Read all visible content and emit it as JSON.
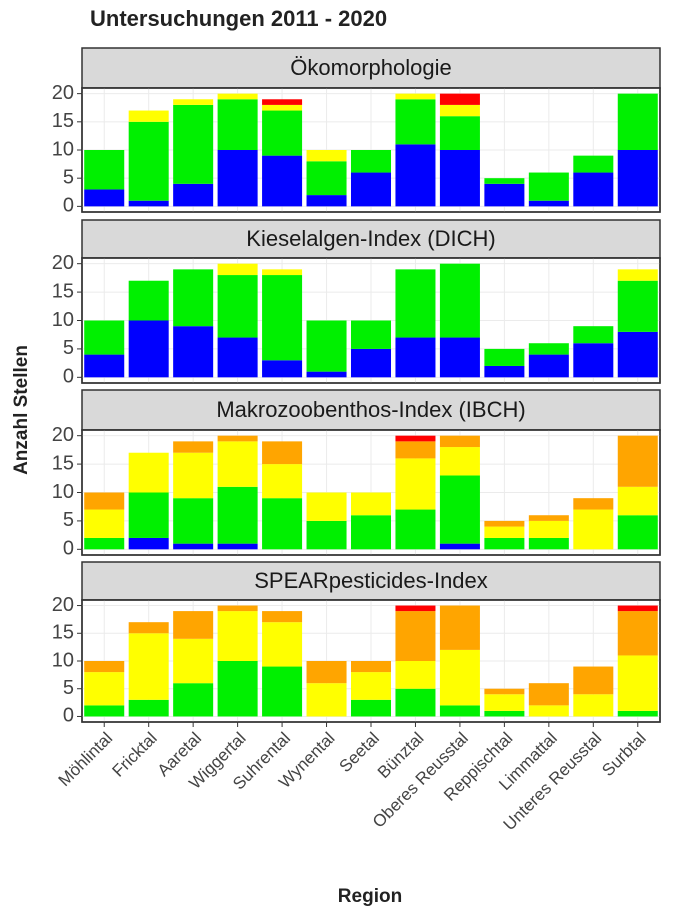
{
  "title": "Untersuchungen 2011 - 2020",
  "x_label": "Region",
  "y_label": "Anzahl Stellen",
  "categories": [
    "Möhlintal",
    "Fricktal",
    "Aaretal",
    "Wiggertal",
    "Suhrental",
    "Wynental",
    "Seetal",
    "Bünztal",
    "Oberes Reusstal",
    "Reppischtal",
    "Limmattal",
    "Unteres Reusstal",
    "Surbtal"
  ],
  "chart_data": [
    {
      "type": "bar",
      "stacked": true,
      "title": "Ökomorphologie",
      "ylim": [
        -1,
        21
      ],
      "yticks": [
        0,
        5,
        10,
        15,
        20
      ],
      "grid": true,
      "series": [
        {
          "color": "#0000ff",
          "values": [
            3,
            1,
            4,
            10,
            9,
            2,
            6,
            11,
            10,
            4,
            1,
            6,
            10
          ]
        },
        {
          "color": "#00f000",
          "values": [
            7,
            14,
            14,
            9,
            8,
            6,
            4,
            8,
            6,
            1,
            5,
            3,
            10
          ]
        },
        {
          "color": "#ffff00",
          "values": [
            0,
            2,
            1,
            1,
            1,
            2,
            0,
            1,
            2,
            0,
            0,
            0,
            0
          ]
        },
        {
          "color": "#ff0000",
          "values": [
            0,
            0,
            0,
            0,
            1,
            0,
            0,
            0,
            2,
            0,
            0,
            0,
            0
          ]
        }
      ]
    },
    {
      "type": "bar",
      "stacked": true,
      "title": "Kieselalgen-Index (DICH)",
      "ylim": [
        -1,
        21
      ],
      "yticks": [
        0,
        5,
        10,
        15,
        20
      ],
      "grid": true,
      "series": [
        {
          "color": "#0000ff",
          "values": [
            4,
            10,
            9,
            7,
            3,
            1,
            5,
            7,
            7,
            2,
            4,
            6,
            8
          ]
        },
        {
          "color": "#00f000",
          "values": [
            6,
            7,
            10,
            11,
            15,
            9,
            5,
            12,
            13,
            3,
            2,
            3,
            9
          ]
        },
        {
          "color": "#ffff00",
          "values": [
            0,
            0,
            0,
            2,
            1,
            0,
            0,
            0,
            0,
            0,
            0,
            0,
            2
          ]
        }
      ]
    },
    {
      "type": "bar",
      "stacked": true,
      "title": "Makrozoobenthos-Index (IBCH)",
      "ylim": [
        -1,
        21
      ],
      "yticks": [
        0,
        5,
        10,
        15,
        20
      ],
      "grid": true,
      "series": [
        {
          "color": "#0000ff",
          "values": [
            0,
            2,
            1,
            1,
            0,
            0,
            0,
            0,
            1,
            0,
            0,
            0,
            0
          ]
        },
        {
          "color": "#00f000",
          "values": [
            2,
            8,
            8,
            10,
            9,
            5,
            6,
            7,
            12,
            2,
            2,
            0,
            6
          ]
        },
        {
          "color": "#ffff00",
          "values": [
            5,
            7,
            8,
            8,
            6,
            5,
            4,
            9,
            5,
            2,
            3,
            7,
            5
          ]
        },
        {
          "color": "#ffa500",
          "values": [
            3,
            0,
            2,
            1,
            4,
            0,
            0,
            3,
            2,
            1,
            1,
            2,
            9
          ]
        },
        {
          "color": "#ff0000",
          "values": [
            0,
            0,
            0,
            0,
            0,
            0,
            0,
            1,
            0,
            0,
            0,
            0,
            0
          ]
        }
      ]
    },
    {
      "type": "bar",
      "stacked": true,
      "title": "SPEARpesticides-Index",
      "ylim": [
        -1,
        21
      ],
      "yticks": [
        0,
        5,
        10,
        15,
        20
      ],
      "grid": true,
      "series": [
        {
          "color": "#00f000",
          "values": [
            2,
            3,
            6,
            10,
            9,
            0,
            3,
            5,
            2,
            1,
            0,
            0,
            1
          ]
        },
        {
          "color": "#ffff00",
          "values": [
            6,
            12,
            8,
            9,
            8,
            6,
            5,
            5,
            10,
            3,
            2,
            4,
            10
          ]
        },
        {
          "color": "#ffa500",
          "values": [
            2,
            2,
            5,
            1,
            2,
            4,
            2,
            9,
            8,
            1,
            4,
            5,
            8
          ]
        },
        {
          "color": "#ff0000",
          "values": [
            0,
            0,
            0,
            0,
            0,
            0,
            0,
            1,
            0,
            0,
            0,
            0,
            1
          ]
        }
      ]
    }
  ]
}
